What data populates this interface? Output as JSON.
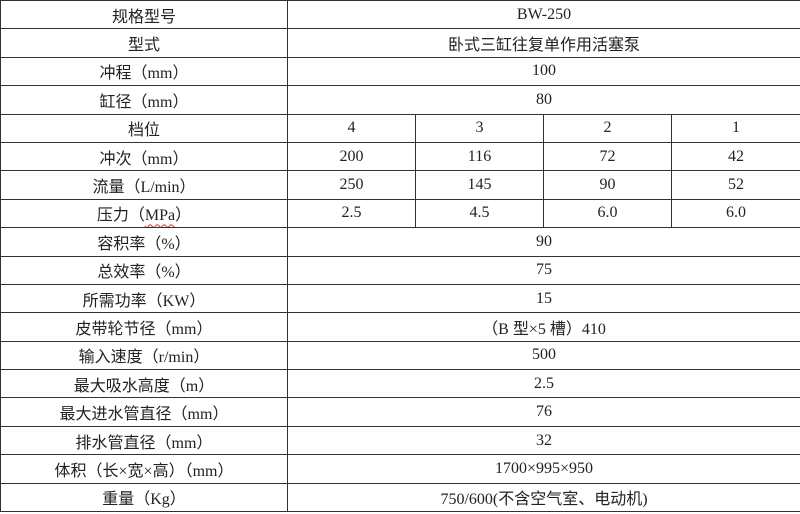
{
  "rows_single": [
    {
      "label": "规格型号",
      "value": "BW-250"
    },
    {
      "label": "型式",
      "value": "卧式三缸往复单作用活塞泵"
    },
    {
      "label": "冲程（mm）",
      "value": "100"
    },
    {
      "label": "缸径（mm）",
      "value": "80"
    }
  ],
  "gear": {
    "label": "档位",
    "values": [
      "4",
      "3",
      "2",
      "1"
    ]
  },
  "strokes": {
    "label": "冲次（mm）",
    "values": [
      "200",
      "116",
      "72",
      "42"
    ]
  },
  "flow": {
    "label": "流量（L/min）",
    "values": [
      "250",
      "145",
      "90",
      "52"
    ]
  },
  "pressure": {
    "label_prefix": "压力（",
    "label_unit": "MPa",
    "label_suffix": "）",
    "values": [
      "2.5",
      "4.5",
      "6.0",
      "6.0"
    ]
  },
  "rows_bottom": [
    {
      "label": "容积率（%）",
      "value": "90"
    },
    {
      "label": "总效率（%）",
      "value": "75"
    },
    {
      "label": "所需功率（KW）",
      "value": "15"
    },
    {
      "label": "皮带轮节径（mm）",
      "value": "（B 型×5 槽）410"
    },
    {
      "label": "输入速度（r/min）",
      "value": "500"
    },
    {
      "label": "最大吸水高度（m）",
      "value": "2.5"
    },
    {
      "label": "最大进水管直径（mm）",
      "value": "76"
    },
    {
      "label": "排水管直径（mm）",
      "value": "32"
    },
    {
      "label": "体积（长×宽×高）（mm）",
      "value": "1700×995×950"
    },
    {
      "label": "重量（Kg）",
      "value": "750/600(不含空气室、电动机)"
    }
  ]
}
